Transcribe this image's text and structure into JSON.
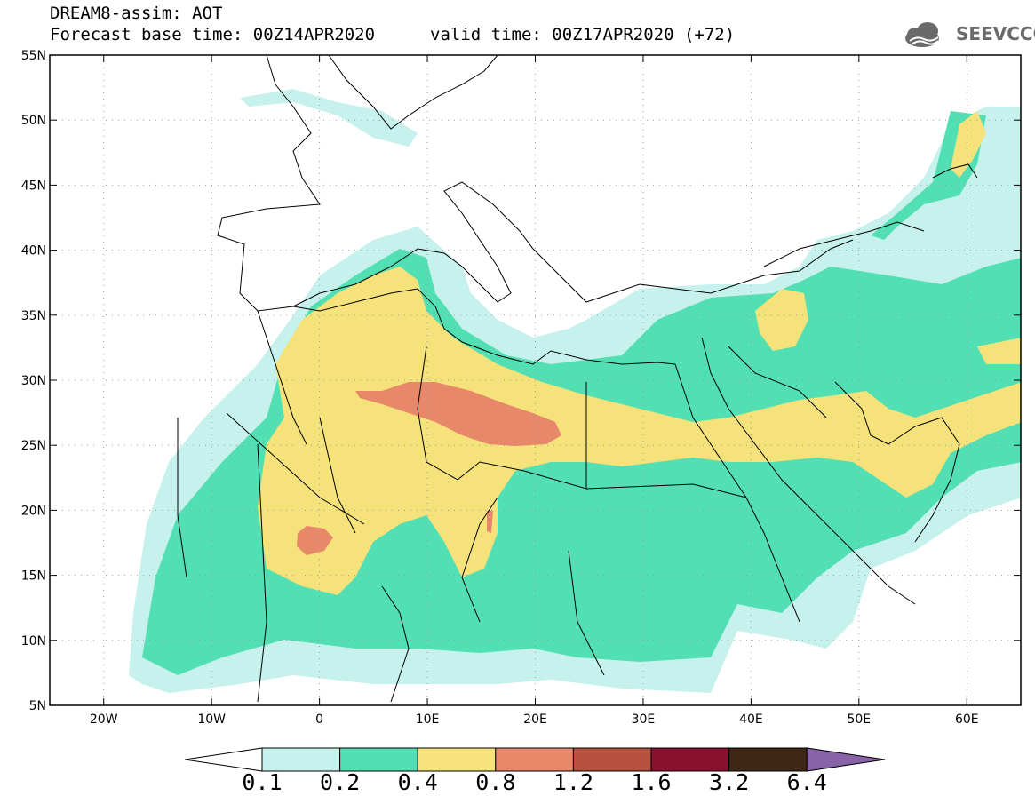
{
  "header": {
    "title": "DREAM8-assim: AOT",
    "base_time": "Forecast base time: 00Z14APR2020",
    "valid_time": "valid time: 00Z17APR2020 (+72)",
    "logo_text": "SEEVCCC"
  },
  "map": {
    "projection": "lat-lon",
    "lon_range": [
      -25,
      65
    ],
    "lat_range": [
      5,
      55
    ],
    "lat_labels": [
      "55N",
      "50N",
      "45N",
      "40N",
      "35N",
      "30N",
      "25N",
      "20N",
      "15N",
      "10N",
      "5N"
    ],
    "lon_labels": [
      "20W",
      "10W",
      "0",
      "10E",
      "20E",
      "30E",
      "40E",
      "50E",
      "60E"
    ],
    "grid": "dotted"
  },
  "colorbar": {
    "labels": [
      "0.1",
      "0.2",
      "0.4",
      "0.8",
      "1.2",
      "1.6",
      "3.2",
      "6.4"
    ],
    "colors": [
      "#c6f1ec",
      "#52dfb3",
      "#f5e27a",
      "#e8886a",
      "#b5513d",
      "#8a1030",
      "#3e2714",
      "#8a62a8"
    ]
  },
  "colors": {
    "c1": "#c6f1ec",
    "c2": "#52dfb3",
    "c3": "#f5e27a",
    "c4": "#e8886a",
    "outline": "#000000"
  }
}
